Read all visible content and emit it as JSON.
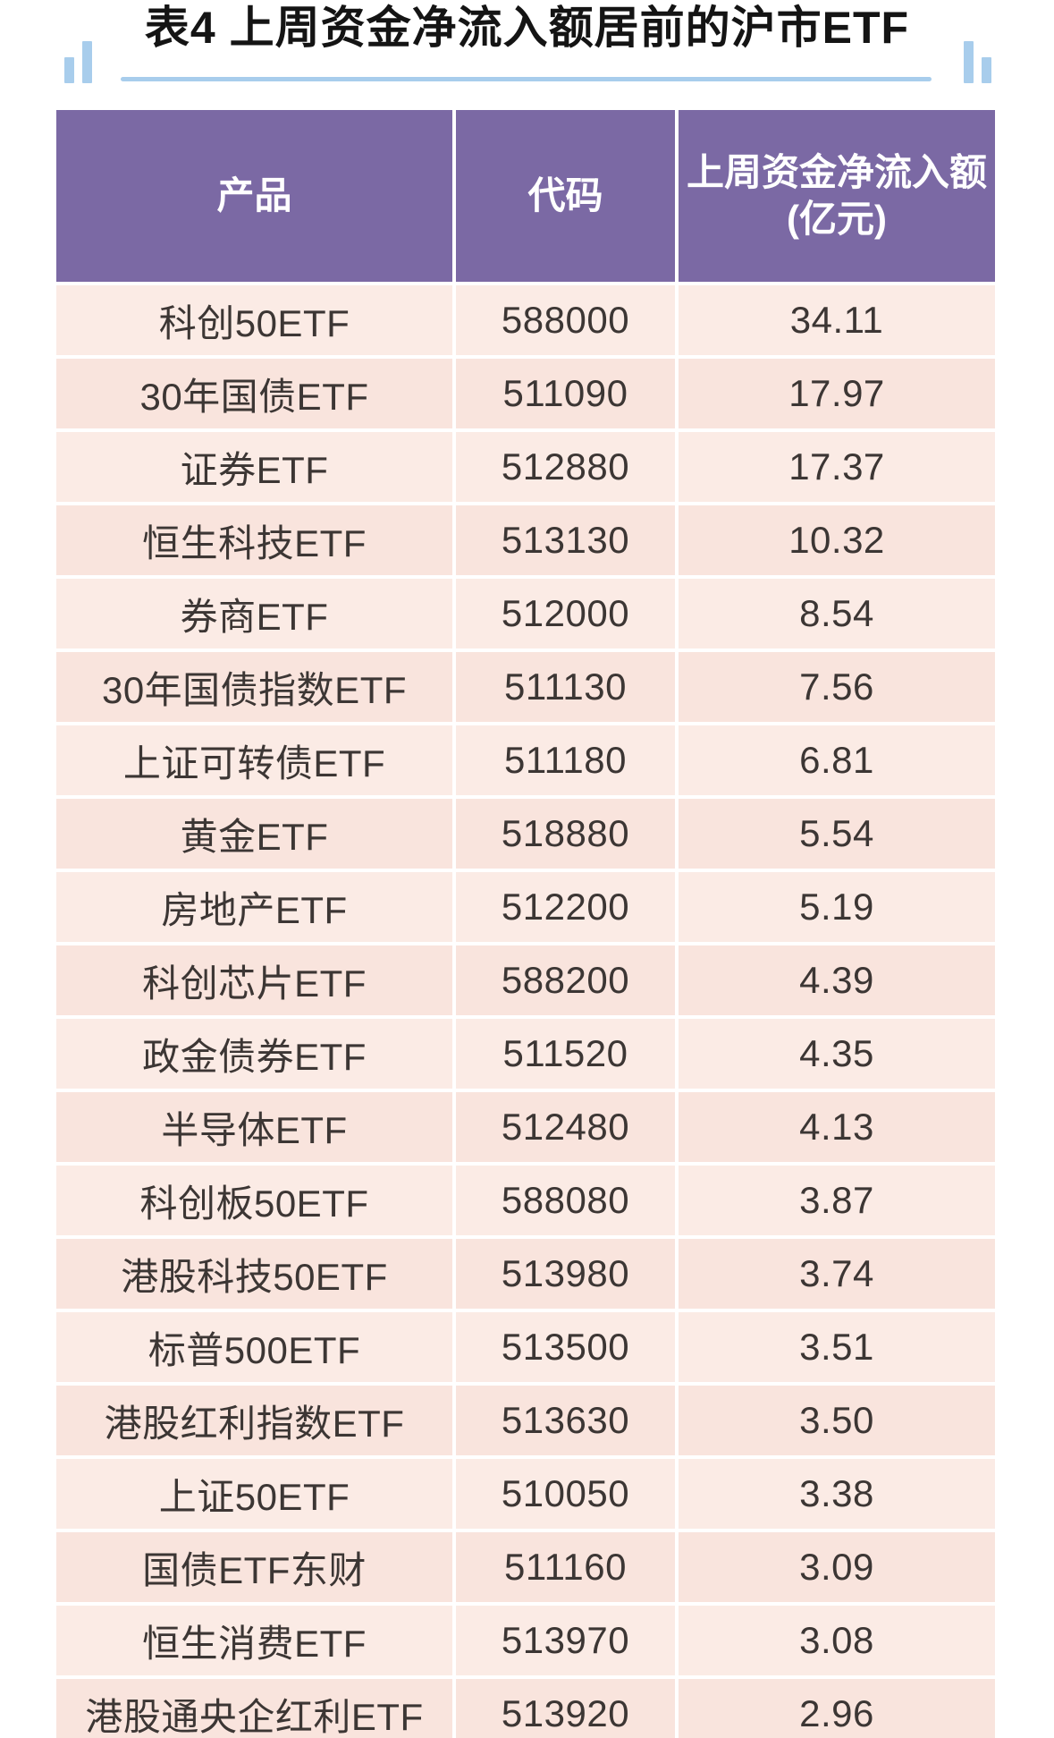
{
  "title": "表4 上周资金净流入额居前的沪市ETF",
  "colors": {
    "accent_blue": "#a8cdec",
    "header_bg": "#7b69a4",
    "header_text": "#ffffff",
    "row_bg": "#fae8e2",
    "cell_text": "#3c3634"
  },
  "table": {
    "header": {
      "product": "产品",
      "code": "代码",
      "inflow_line1": "上周资金净流入额",
      "inflow_line2": "(亿元)"
    },
    "rows": [
      {
        "product": "科创50ETF",
        "code": "588000",
        "value": "34.11"
      },
      {
        "product": "30年国债ETF",
        "code": "511090",
        "value": "17.97"
      },
      {
        "product": "证券ETF",
        "code": "512880",
        "value": "17.37"
      },
      {
        "product": "恒生科技ETF",
        "code": "513130",
        "value": "10.32"
      },
      {
        "product": "券商ETF",
        "code": "512000",
        "value": "8.54"
      },
      {
        "product": "30年国债指数ETF",
        "code": "511130",
        "value": "7.56"
      },
      {
        "product": "上证可转债ETF",
        "code": "511180",
        "value": "6.81"
      },
      {
        "product": "黄金ETF",
        "code": "518880",
        "value": "5.54"
      },
      {
        "product": "房地产ETF",
        "code": "512200",
        "value": "5.19"
      },
      {
        "product": "科创芯片ETF",
        "code": "588200",
        "value": "4.39"
      },
      {
        "product": "政金债券ETF",
        "code": "511520",
        "value": "4.35"
      },
      {
        "product": "半导体ETF",
        "code": "512480",
        "value": "4.13"
      },
      {
        "product": "科创板50ETF",
        "code": "588080",
        "value": "3.87"
      },
      {
        "product": "港股科技50ETF",
        "code": "513980",
        "value": "3.74"
      },
      {
        "product": "标普500ETF",
        "code": "513500",
        "value": "3.51"
      },
      {
        "product": "港股红利指数ETF",
        "code": "513630",
        "value": "3.50"
      },
      {
        "product": "上证50ETF",
        "code": "510050",
        "value": "3.38"
      },
      {
        "product": "国债ETF东财",
        "code": "511160",
        "value": "3.09"
      },
      {
        "product": "恒生消费ETF",
        "code": "513970",
        "value": "3.08"
      },
      {
        "product": "港股通央企红利ETF",
        "code": "513920",
        "value": "2.96"
      }
    ]
  },
  "chart_data": {
    "type": "table",
    "title": "表4 上周资金净流入额居前的沪市ETF",
    "columns": [
      "产品",
      "代码",
      "上周资金净流入额(亿元)"
    ],
    "rows": [
      [
        "科创50ETF",
        "588000",
        34.11
      ],
      [
        "30年国债ETF",
        "511090",
        17.97
      ],
      [
        "证券ETF",
        "512880",
        17.37
      ],
      [
        "恒生科技ETF",
        "513130",
        10.32
      ],
      [
        "券商ETF",
        "512000",
        8.54
      ],
      [
        "30年国债指数ETF",
        "511130",
        7.56
      ],
      [
        "上证可转债ETF",
        "511180",
        6.81
      ],
      [
        "黄金ETF",
        "518880",
        5.54
      ],
      [
        "房地产ETF",
        "512200",
        5.19
      ],
      [
        "科创芯片ETF",
        "588200",
        4.39
      ],
      [
        "政金债券ETF",
        "511520",
        4.35
      ],
      [
        "半导体ETF",
        "512480",
        4.13
      ],
      [
        "科创板50ETF",
        "588080",
        3.87
      ],
      [
        "港股科技50ETF",
        "513980",
        3.74
      ],
      [
        "标普500ETF",
        "513500",
        3.51
      ],
      [
        "港股红利指数ETF",
        "513630",
        3.5
      ],
      [
        "上证50ETF",
        "510050",
        3.38
      ],
      [
        "国债ETF东财",
        "511160",
        3.09
      ],
      [
        "恒生消费ETF",
        "513970",
        3.08
      ],
      [
        "港股通央企红利ETF",
        "513920",
        2.96
      ]
    ]
  }
}
